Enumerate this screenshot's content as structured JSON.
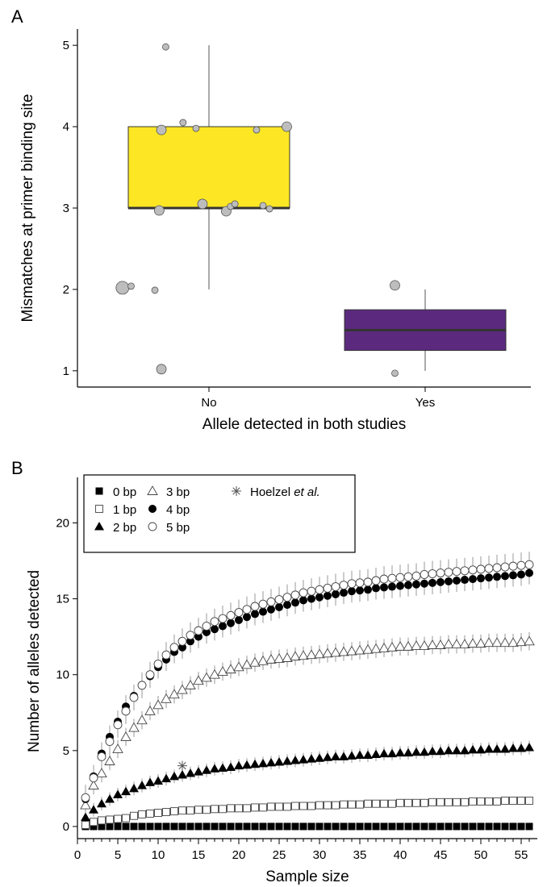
{
  "chart_data": [
    {
      "panel": "A",
      "type": "box",
      "xlabel": "Allele detected in both studies",
      "ylabel": "Mismatches at primer binding site",
      "categories": [
        "No",
        "Yes"
      ],
      "ylim": [
        0.8,
        5.2
      ],
      "yticks": [
        1,
        2,
        3,
        4,
        5
      ],
      "grid": false,
      "boxes": [
        {
          "category": "No",
          "min": 2,
          "q1": 3,
          "median": 3,
          "q3": 4,
          "max": 5,
          "color": "#FDE725"
        },
        {
          "category": "Yes",
          "min": 1,
          "q1": 1.25,
          "median": 1.5,
          "q3": 1.75,
          "max": 2,
          "color": "#5B2A7E"
        }
      ],
      "points": [
        {
          "category": "No",
          "jitter": -0.2,
          "y": 4.98,
          "size": 1
        },
        {
          "category": "No",
          "jitter": -0.12,
          "y": 4.05,
          "size": 1
        },
        {
          "category": "No",
          "jitter": -0.22,
          "y": 3.96,
          "size": 2
        },
        {
          "category": "No",
          "jitter": -0.06,
          "y": 3.98,
          "size": 1
        },
        {
          "category": "No",
          "jitter": 0.22,
          "y": 3.96,
          "size": 1
        },
        {
          "category": "No",
          "jitter": 0.36,
          "y": 4.0,
          "size": 2
        },
        {
          "category": "No",
          "jitter": -0.23,
          "y": 2.97,
          "size": 2
        },
        {
          "category": "No",
          "jitter": -0.03,
          "y": 3.05,
          "size": 2
        },
        {
          "category": "No",
          "jitter": 0.08,
          "y": 2.96,
          "size": 2
        },
        {
          "category": "No",
          "jitter": 0.1,
          "y": 3.02,
          "size": 1
        },
        {
          "category": "No",
          "jitter": 0.12,
          "y": 3.05,
          "size": 1
        },
        {
          "category": "No",
          "jitter": 0.25,
          "y": 3.03,
          "size": 1
        },
        {
          "category": "No",
          "jitter": 0.28,
          "y": 2.99,
          "size": 1
        },
        {
          "category": "No",
          "jitter": -0.4,
          "y": 2.02,
          "size": 3
        },
        {
          "category": "No",
          "jitter": -0.36,
          "y": 2.04,
          "size": 1
        },
        {
          "category": "No",
          "jitter": -0.25,
          "y": 1.99,
          "size": 1
        },
        {
          "category": "No",
          "jitter": -0.22,
          "y": 1.02,
          "size": 2
        },
        {
          "category": "Yes",
          "jitter": -0.14,
          "y": 2.05,
          "size": 2
        },
        {
          "category": "Yes",
          "jitter": -0.14,
          "y": 0.97,
          "size": 1
        }
      ]
    },
    {
      "panel": "B",
      "type": "scatter",
      "xlabel": "Sample size",
      "ylabel": "Number of alleles detected",
      "xlim": [
        0,
        57
      ],
      "ylim": [
        -0.8,
        23
      ],
      "xticks": [
        0,
        5,
        10,
        15,
        20,
        25,
        30,
        35,
        40,
        45,
        50,
        55
      ],
      "yticks": [
        0,
        5,
        10,
        15,
        20
      ],
      "grid": false,
      "legend_position": "top-left",
      "legend": [
        {
          "label": "0 bp",
          "marker": "square-filled"
        },
        {
          "label": "1 bp",
          "marker": "square-open"
        },
        {
          "label": "2 bp",
          "marker": "triangle-filled"
        },
        {
          "label": "3 bp",
          "marker": "triangle-open"
        },
        {
          "label": "4 bp",
          "marker": "circle-filled"
        },
        {
          "label": "5 bp",
          "marker": "circle-open"
        },
        {
          "label_main": "Hoelzel ",
          "label_italic": "et al.",
          "marker": "asterisk"
        }
      ],
      "x_range": [
        1,
        56
      ],
      "series": [
        {
          "legend_index": 0,
          "marker": "square-filled",
          "values": [
            0,
            0,
            0,
            0,
            0,
            0,
            0,
            0,
            0,
            0,
            0,
            0,
            0,
            0,
            0,
            0,
            0,
            0,
            0,
            0,
            0,
            0,
            0,
            0,
            0,
            0,
            0,
            0,
            0,
            0,
            0,
            0,
            0,
            0,
            0,
            0,
            0,
            0,
            0,
            0,
            0,
            0,
            0,
            0,
            0,
            0,
            0,
            0,
            0,
            0,
            0,
            0,
            0,
            0,
            0,
            0
          ]
        },
        {
          "legend_index": 1,
          "marker": "square-open",
          "values": [
            0.1,
            0.3,
            0.4,
            0.45,
            0.5,
            0.55,
            0.7,
            0.8,
            0.85,
            0.9,
            0.95,
            1.0,
            1.05,
            1.05,
            1.1,
            1.1,
            1.15,
            1.15,
            1.2,
            1.2,
            1.2,
            1.25,
            1.25,
            1.3,
            1.3,
            1.3,
            1.35,
            1.35,
            1.35,
            1.4,
            1.4,
            1.4,
            1.45,
            1.45,
            1.45,
            1.5,
            1.5,
            1.5,
            1.5,
            1.55,
            1.55,
            1.55,
            1.55,
            1.6,
            1.6,
            1.6,
            1.6,
            1.6,
            1.65,
            1.65,
            1.65,
            1.65,
            1.7,
            1.7,
            1.7,
            1.7
          ]
        },
        {
          "legend_index": 2,
          "marker": "triangle-filled",
          "values": [
            0.6,
            1.1,
            1.5,
            1.8,
            2.1,
            2.3,
            2.5,
            2.7,
            2.9,
            3.0,
            3.15,
            3.3,
            3.4,
            3.5,
            3.6,
            3.7,
            3.8,
            3.85,
            3.9,
            4.0,
            4.05,
            4.1,
            4.15,
            4.2,
            4.25,
            4.3,
            4.35,
            4.4,
            4.45,
            4.5,
            4.55,
            4.6,
            4.6,
            4.65,
            4.7,
            4.7,
            4.75,
            4.8,
            4.8,
            4.85,
            4.85,
            4.9,
            4.9,
            4.95,
            4.95,
            5.0,
            5.0,
            5.0,
            5.05,
            5.05,
            5.1,
            5.1,
            5.1,
            5.15,
            5.15,
            5.2
          ]
        },
        {
          "legend_index": 3,
          "marker": "triangle-open",
          "values": [
            1.4,
            2.7,
            3.5,
            4.3,
            5.1,
            5.9,
            6.5,
            7.0,
            7.6,
            8.0,
            8.4,
            8.7,
            9.0,
            9.3,
            9.6,
            9.8,
            10.0,
            10.2,
            10.35,
            10.5,
            10.65,
            10.8,
            10.9,
            11.0,
            11.05,
            11.1,
            11.2,
            11.25,
            11.3,
            11.35,
            11.4,
            11.45,
            11.5,
            11.55,
            11.6,
            11.65,
            11.7,
            11.75,
            11.8,
            11.85,
            11.85,
            11.9,
            11.9,
            11.95,
            11.95,
            12.0,
            12.0,
            12.0,
            12.05,
            12.05,
            12.1,
            12.1,
            12.1,
            12.1,
            12.15,
            12.2
          ]
        },
        {
          "legend_index": 4,
          "marker": "circle-filled",
          "values": [
            1.8,
            3.3,
            4.8,
            5.9,
            6.9,
            7.9,
            8.6,
            9.3,
            9.9,
            10.5,
            11.0,
            11.5,
            11.8,
            12.2,
            12.5,
            12.8,
            13.0,
            13.2,
            13.4,
            13.6,
            13.8,
            14.0,
            14.15,
            14.3,
            14.45,
            14.6,
            14.75,
            14.9,
            15.0,
            15.1,
            15.2,
            15.3,
            15.4,
            15.5,
            15.55,
            15.6,
            15.7,
            15.75,
            15.8,
            15.85,
            15.9,
            15.95,
            16.0,
            16.05,
            16.1,
            16.15,
            16.2,
            16.25,
            16.3,
            16.35,
            16.4,
            16.45,
            16.5,
            16.55,
            16.6,
            16.7
          ]
        },
        {
          "legend_index": 5,
          "marker": "circle-open",
          "values": [
            1.9,
            3.2,
            4.6,
            5.6,
            6.7,
            7.6,
            8.5,
            9.3,
            10.0,
            10.7,
            11.3,
            11.8,
            12.2,
            12.6,
            12.9,
            13.2,
            13.5,
            13.7,
            13.9,
            14.1,
            14.3,
            14.5,
            14.65,
            14.8,
            14.95,
            15.1,
            15.25,
            15.4,
            15.5,
            15.6,
            15.7,
            15.8,
            15.9,
            16.0,
            16.05,
            16.1,
            16.2,
            16.3,
            16.35,
            16.4,
            16.45,
            16.5,
            16.6,
            16.65,
            16.7,
            16.75,
            16.8,
            16.85,
            16.9,
            16.95,
            17.0,
            17.05,
            17.1,
            17.15,
            17.2,
            17.25
          ]
        }
      ],
      "error_bar_halfwidth": [
        0.1,
        0.25,
        0.45,
        0.6,
        0.75,
        0.85,
        0.9
      ],
      "reference_point": {
        "legend_index": 6,
        "marker": "asterisk",
        "x": 13,
        "y": 4.0
      }
    }
  ]
}
